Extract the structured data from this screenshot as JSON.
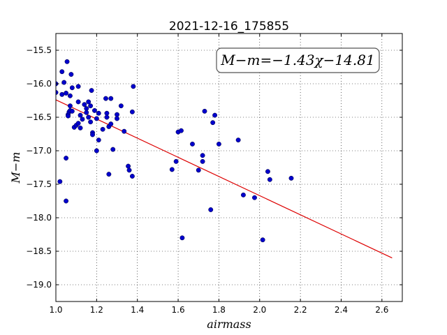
{
  "chart_data": {
    "type": "scatter",
    "title": "2021-12-16_175855",
    "xlabel": "airmass",
    "ylabel": "M−m",
    "xlim": [
      1.0,
      2.7
    ],
    "ylim": [
      -19.25,
      -15.25
    ],
    "y_inverted": true,
    "grid": true,
    "x_ticks": [
      1.0,
      1.2,
      1.4,
      1.6,
      1.8,
      2.0,
      2.2,
      2.4,
      2.6
    ],
    "x_tick_labels": [
      "1.0",
      "1.2",
      "1.4",
      "1.6",
      "1.8",
      "2.0",
      "2.2",
      "2.4",
      "2.6"
    ],
    "y_ticks": [
      -15.5,
      -16.0,
      -16.5,
      -17.0,
      -17.5,
      -18.0,
      -18.5,
      -19.0
    ],
    "y_tick_labels": [
      "−15.5",
      "−16.0",
      "−16.5",
      "−17.0",
      "−17.5",
      "−18.0",
      "−18.5",
      "−19.0"
    ],
    "annotation": "M−m=−1.43χ−14.81",
    "annotation_position": "top-right",
    "point_color": "#0000cc",
    "fit_color": "#dd0000",
    "fit_line": {
      "slope": -1.43,
      "intercept": -14.81,
      "x": [
        1.0,
        2.65
      ]
    },
    "points": [
      {
        "x": 1.0,
        "y": -16.13
      },
      {
        "x": 1.0,
        "y": -16.0
      },
      {
        "x": 1.02,
        "y": -17.46
      },
      {
        "x": 1.03,
        "y": -15.82
      },
      {
        "x": 1.03,
        "y": -16.16
      },
      {
        "x": 1.04,
        "y": -15.98
      },
      {
        "x": 1.05,
        "y": -16.14
      },
      {
        "x": 1.05,
        "y": -17.11
      },
      {
        "x": 1.05,
        "y": -17.75
      },
      {
        "x": 1.055,
        "y": -15.67
      },
      {
        "x": 1.06,
        "y": -16.46
      },
      {
        "x": 1.06,
        "y": -16.48
      },
      {
        "x": 1.065,
        "y": -16.42
      },
      {
        "x": 1.07,
        "y": -16.18
      },
      {
        "x": 1.07,
        "y": -16.33
      },
      {
        "x": 1.07,
        "y": -16.4
      },
      {
        "x": 1.075,
        "y": -15.86
      },
      {
        "x": 1.08,
        "y": -16.06
      },
      {
        "x": 1.08,
        "y": -16.41
      },
      {
        "x": 1.09,
        "y": -16.65
      },
      {
        "x": 1.1,
        "y": -16.62
      },
      {
        "x": 1.11,
        "y": -16.04
      },
      {
        "x": 1.11,
        "y": -16.27
      },
      {
        "x": 1.11,
        "y": -16.59
      },
      {
        "x": 1.12,
        "y": -16.66
      },
      {
        "x": 1.12,
        "y": -16.47
      },
      {
        "x": 1.13,
        "y": -16.53
      },
      {
        "x": 1.14,
        "y": -16.31
      },
      {
        "x": 1.15,
        "y": -16.37
      },
      {
        "x": 1.15,
        "y": -16.43
      },
      {
        "x": 1.16,
        "y": -16.27
      },
      {
        "x": 1.16,
        "y": -16.5
      },
      {
        "x": 1.17,
        "y": -16.57
      },
      {
        "x": 1.17,
        "y": -16.33
      },
      {
        "x": 1.175,
        "y": -16.1
      },
      {
        "x": 1.18,
        "y": -16.73
      },
      {
        "x": 1.18,
        "y": -16.76
      },
      {
        "x": 1.19,
        "y": -16.4
      },
      {
        "x": 1.2,
        "y": -16.52
      },
      {
        "x": 1.2,
        "y": -17.0
      },
      {
        "x": 1.21,
        "y": -16.84
      },
      {
        "x": 1.21,
        "y": -16.44
      },
      {
        "x": 1.23,
        "y": -16.68
      },
      {
        "x": 1.245,
        "y": -16.22
      },
      {
        "x": 1.25,
        "y": -16.44
      },
      {
        "x": 1.25,
        "y": -16.5
      },
      {
        "x": 1.26,
        "y": -16.64
      },
      {
        "x": 1.26,
        "y": -17.35
      },
      {
        "x": 1.27,
        "y": -16.6
      },
      {
        "x": 1.27,
        "y": -16.22
      },
      {
        "x": 1.28,
        "y": -16.98
      },
      {
        "x": 1.3,
        "y": -16.46
      },
      {
        "x": 1.3,
        "y": -16.52
      },
      {
        "x": 1.32,
        "y": -16.33
      },
      {
        "x": 1.335,
        "y": -16.71
      },
      {
        "x": 1.355,
        "y": -17.23
      },
      {
        "x": 1.36,
        "y": -17.29
      },
      {
        "x": 1.375,
        "y": -16.42
      },
      {
        "x": 1.375,
        "y": -17.38
      },
      {
        "x": 1.38,
        "y": -16.04
      },
      {
        "x": 1.57,
        "y": -17.28
      },
      {
        "x": 1.59,
        "y": -17.16
      },
      {
        "x": 1.6,
        "y": -16.72
      },
      {
        "x": 1.615,
        "y": -16.7
      },
      {
        "x": 1.62,
        "y": -18.3
      },
      {
        "x": 1.67,
        "y": -16.9
      },
      {
        "x": 1.7,
        "y": -17.29
      },
      {
        "x": 1.72,
        "y": -17.07
      },
      {
        "x": 1.72,
        "y": -17.16
      },
      {
        "x": 1.73,
        "y": -16.41
      },
      {
        "x": 1.76,
        "y": -17.88
      },
      {
        "x": 1.77,
        "y": -16.58
      },
      {
        "x": 1.78,
        "y": -16.47
      },
      {
        "x": 1.8,
        "y": -16.9
      },
      {
        "x": 1.895,
        "y": -16.84
      },
      {
        "x": 1.92,
        "y": -17.66
      },
      {
        "x": 1.975,
        "y": -17.7
      },
      {
        "x": 2.015,
        "y": -18.33
      },
      {
        "x": 2.04,
        "y": -17.31
      },
      {
        "x": 2.05,
        "y": -17.43
      },
      {
        "x": 2.155,
        "y": -17.41
      }
    ]
  }
}
